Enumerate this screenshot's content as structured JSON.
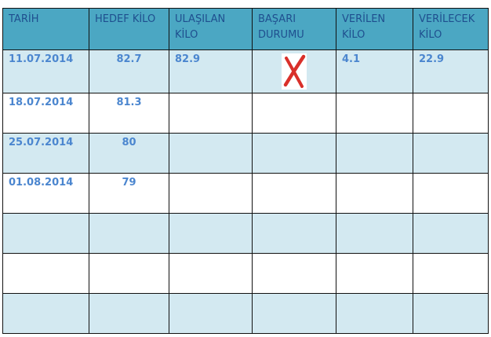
{
  "headers": [
    "TARİH",
    "HEDEF KİLO",
    "ULAŞILAN KİLO",
    "BAŞARI DURUMU",
    "VERİLEN KİLO",
    "VERİLECEK KİLO"
  ],
  "rows": [
    {
      "tarih": "11.07.2014",
      "hedef": "82.7",
      "ulasilan": "82.9",
      "basari": "x-mark-icon",
      "verilen": "4.1",
      "verilecek": "22.9"
    },
    {
      "tarih": "18.07.2014",
      "hedef": "81.3",
      "ulasilan": "",
      "basari": "",
      "verilen": "",
      "verilecek": ""
    },
    {
      "tarih": "25.07.2014",
      "hedef": "80",
      "ulasilan": "",
      "basari": "",
      "verilen": "",
      "verilecek": ""
    },
    {
      "tarih": "01.08.2014",
      "hedef": "79",
      "ulasilan": "",
      "basari": "",
      "verilen": "",
      "verilecek": ""
    },
    {
      "tarih": "",
      "hedef": "",
      "ulasilan": "",
      "basari": "",
      "verilen": "",
      "verilecek": ""
    },
    {
      "tarih": "",
      "hedef": "",
      "ulasilan": "",
      "basari": "",
      "verilen": "",
      "verilecek": ""
    },
    {
      "tarih": "",
      "hedef": "",
      "ulasilan": "",
      "basari": "",
      "verilen": "",
      "verilecek": ""
    }
  ],
  "colors": {
    "header_bg": "#4ba7c3",
    "row_alt_bg": "#d3e9f1",
    "text": "#4b86cf",
    "fail_mark": "#d9302a"
  }
}
